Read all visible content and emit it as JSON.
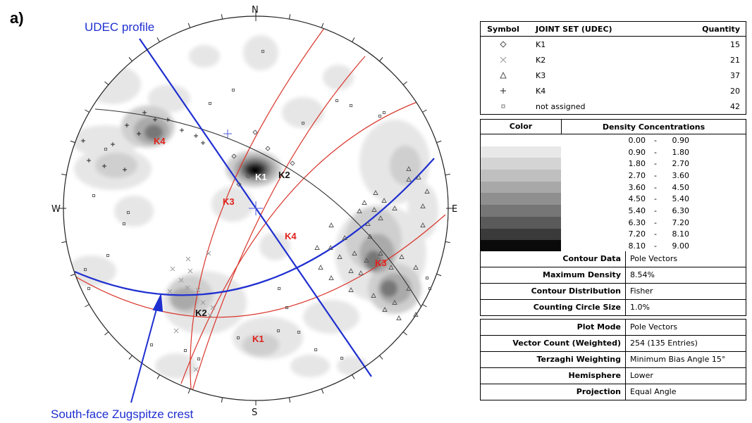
{
  "figure_label": "a)",
  "compass": {
    "N": "N",
    "S": "S",
    "E": "E",
    "W": "W"
  },
  "annotations": {
    "udec_profile": "UDEC profile",
    "south_face": "South-face Zugspitze crest"
  },
  "set_labels": [
    {
      "id": "k4-label",
      "text": "K4",
      "color": "red"
    },
    {
      "id": "k1-center-label",
      "text": "K1",
      "color": "white"
    },
    {
      "id": "k2-upper-label",
      "text": "K2",
      "color": "black"
    },
    {
      "id": "k3-left-label",
      "text": "K3",
      "color": "red"
    },
    {
      "id": "k4-mid-label",
      "text": "K4",
      "color": "red"
    },
    {
      "id": "k3-right-label",
      "text": "K3",
      "color": "red"
    },
    {
      "id": "k2-lower-label",
      "text": "K2",
      "color": "black"
    },
    {
      "id": "k1-bottom-label",
      "text": "K1",
      "color": "red"
    }
  ],
  "joint_table": {
    "headers": {
      "symbol": "Symbol",
      "set": "JOINT SET (UDEC)",
      "quantity": "Quantity"
    },
    "rows": [
      {
        "symbol": "diamond",
        "name": "K1",
        "quantity": "15"
      },
      {
        "symbol": "cross-x",
        "name": "K2",
        "quantity": "21"
      },
      {
        "symbol": "triangle",
        "name": "K3",
        "quantity": "37"
      },
      {
        "symbol": "plus",
        "name": "K4",
        "quantity": "20"
      },
      {
        "symbol": "square",
        "name": "not assigned",
        "quantity": "42"
      }
    ]
  },
  "density_table": {
    "headers": {
      "color": "Color",
      "conc": "Density Concentrations"
    },
    "separator": "-",
    "bins": [
      {
        "lo": "0.00",
        "hi": "0.90",
        "color": "#ffffff"
      },
      {
        "lo": "0.90",
        "hi": "1.80",
        "color": "#e8e8e8"
      },
      {
        "lo": "1.80",
        "hi": "2.70",
        "color": "#d4d4d4"
      },
      {
        "lo": "2.70",
        "hi": "3.60",
        "color": "#bfbfbf"
      },
      {
        "lo": "3.60",
        "hi": "4.50",
        "color": "#a8a8a8"
      },
      {
        "lo": "4.50",
        "hi": "5.40",
        "color": "#8f8f8f"
      },
      {
        "lo": "5.40",
        "hi": "6.30",
        "color": "#767676"
      },
      {
        "lo": "6.30",
        "hi": "7.20",
        "color": "#5a5a5a"
      },
      {
        "lo": "7.20",
        "hi": "8.10",
        "color": "#3a3a3a"
      },
      {
        "lo": "8.10",
        "hi": "9.00",
        "color": "#0a0a0a"
      }
    ]
  },
  "contour_props": [
    {
      "label": "Contour Data",
      "value": "Pole Vectors"
    },
    {
      "label": "Maximum Density",
      "value": "8.54%"
    },
    {
      "label": "Contour Distribution",
      "value": "Fisher"
    },
    {
      "label": "Counting Circle Size",
      "value": "1.0%"
    }
  ],
  "plot_props": [
    {
      "label": "Plot Mode",
      "value": "Pole Vectors"
    },
    {
      "label": "Vector Count (Weighted)",
      "value": "254 (135 Entries)"
    },
    {
      "label": "Terzaghi Weighting",
      "value": "Minimum Bias Angle 15°"
    },
    {
      "label": "Hemisphere",
      "value": "Lower"
    },
    {
      "label": "Projection",
      "value": "Equal Angle"
    }
  ],
  "colors": {
    "profile": "#1f2fd0",
    "great_circle": "#d9362c",
    "label_red": "#e0201a"
  }
}
